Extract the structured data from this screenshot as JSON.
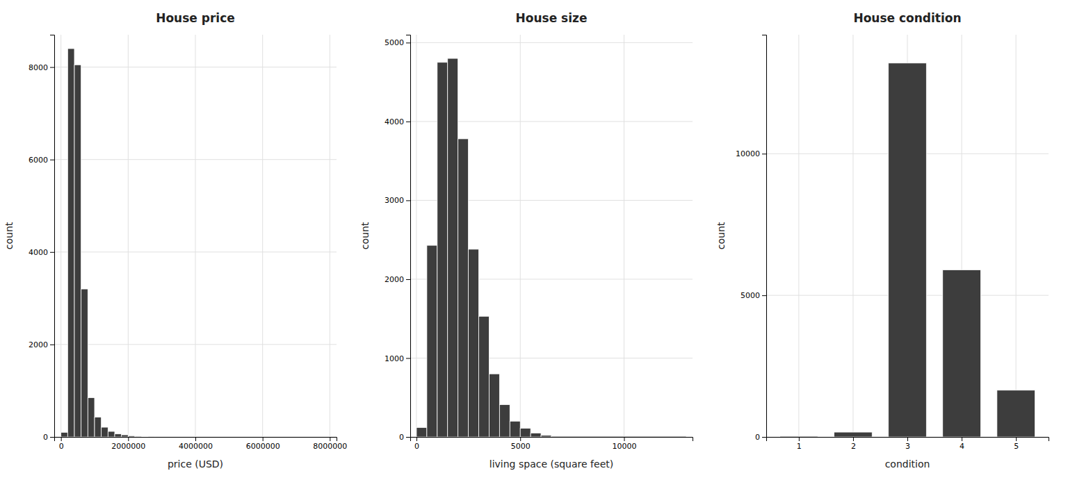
{
  "chart_data": [
    {
      "type": "histogram",
      "title": "House price",
      "xlabel": "price (USD)",
      "ylabel": "count",
      "color": "#3d3d3d",
      "grid": true,
      "xlim": [
        -200000,
        8200000
      ],
      "ylim": [
        0,
        8700
      ],
      "xticks": [
        0,
        2000000,
        4000000,
        6000000,
        8000000
      ],
      "yticks": [
        0,
        2000,
        4000,
        6000,
        8000
      ],
      "bins": [
        0,
        200000,
        400000,
        600000,
        800000,
        1000000,
        1200000,
        1400000,
        1600000,
        1800000,
        2000000,
        2200000,
        2400000,
        2600000,
        2800000,
        8200000
      ],
      "values": [
        100,
        8400,
        8050,
        3200,
        850,
        430,
        210,
        120,
        65,
        45,
        25,
        15,
        8,
        5,
        2
      ]
    },
    {
      "type": "histogram",
      "title": "House size",
      "xlabel": "living space (square feet)",
      "ylabel": "count",
      "color": "#3d3d3d",
      "grid": true,
      "xlim": [
        -300,
        13300
      ],
      "ylim": [
        0,
        5100
      ],
      "xticks": [
        0,
        5000,
        10000
      ],
      "yticks": [
        0,
        1000,
        2000,
        3000,
        4000,
        5000
      ],
      "bins": [
        0,
        500,
        1000,
        1500,
        2000,
        2500,
        3000,
        3500,
        4000,
        4500,
        5000,
        5500,
        6000,
        6500,
        13000
      ],
      "values": [
        120,
        2430,
        4750,
        4800,
        3780,
        2380,
        1530,
        800,
        410,
        200,
        110,
        50,
        20,
        10
      ]
    },
    {
      "type": "bar",
      "title": "House condition",
      "xlabel": "condition",
      "ylabel": "count",
      "color": "#3d3d3d",
      "grid": true,
      "xlim": [
        0.4,
        5.6
      ],
      "ylim": [
        0,
        14200
      ],
      "xticks": [
        1,
        2,
        3,
        4,
        5
      ],
      "yticks": [
        0,
        5000,
        10000
      ],
      "x": [
        1,
        2,
        3,
        4,
        5
      ],
      "values": [
        28,
        170,
        13200,
        5900,
        1650
      ]
    }
  ]
}
